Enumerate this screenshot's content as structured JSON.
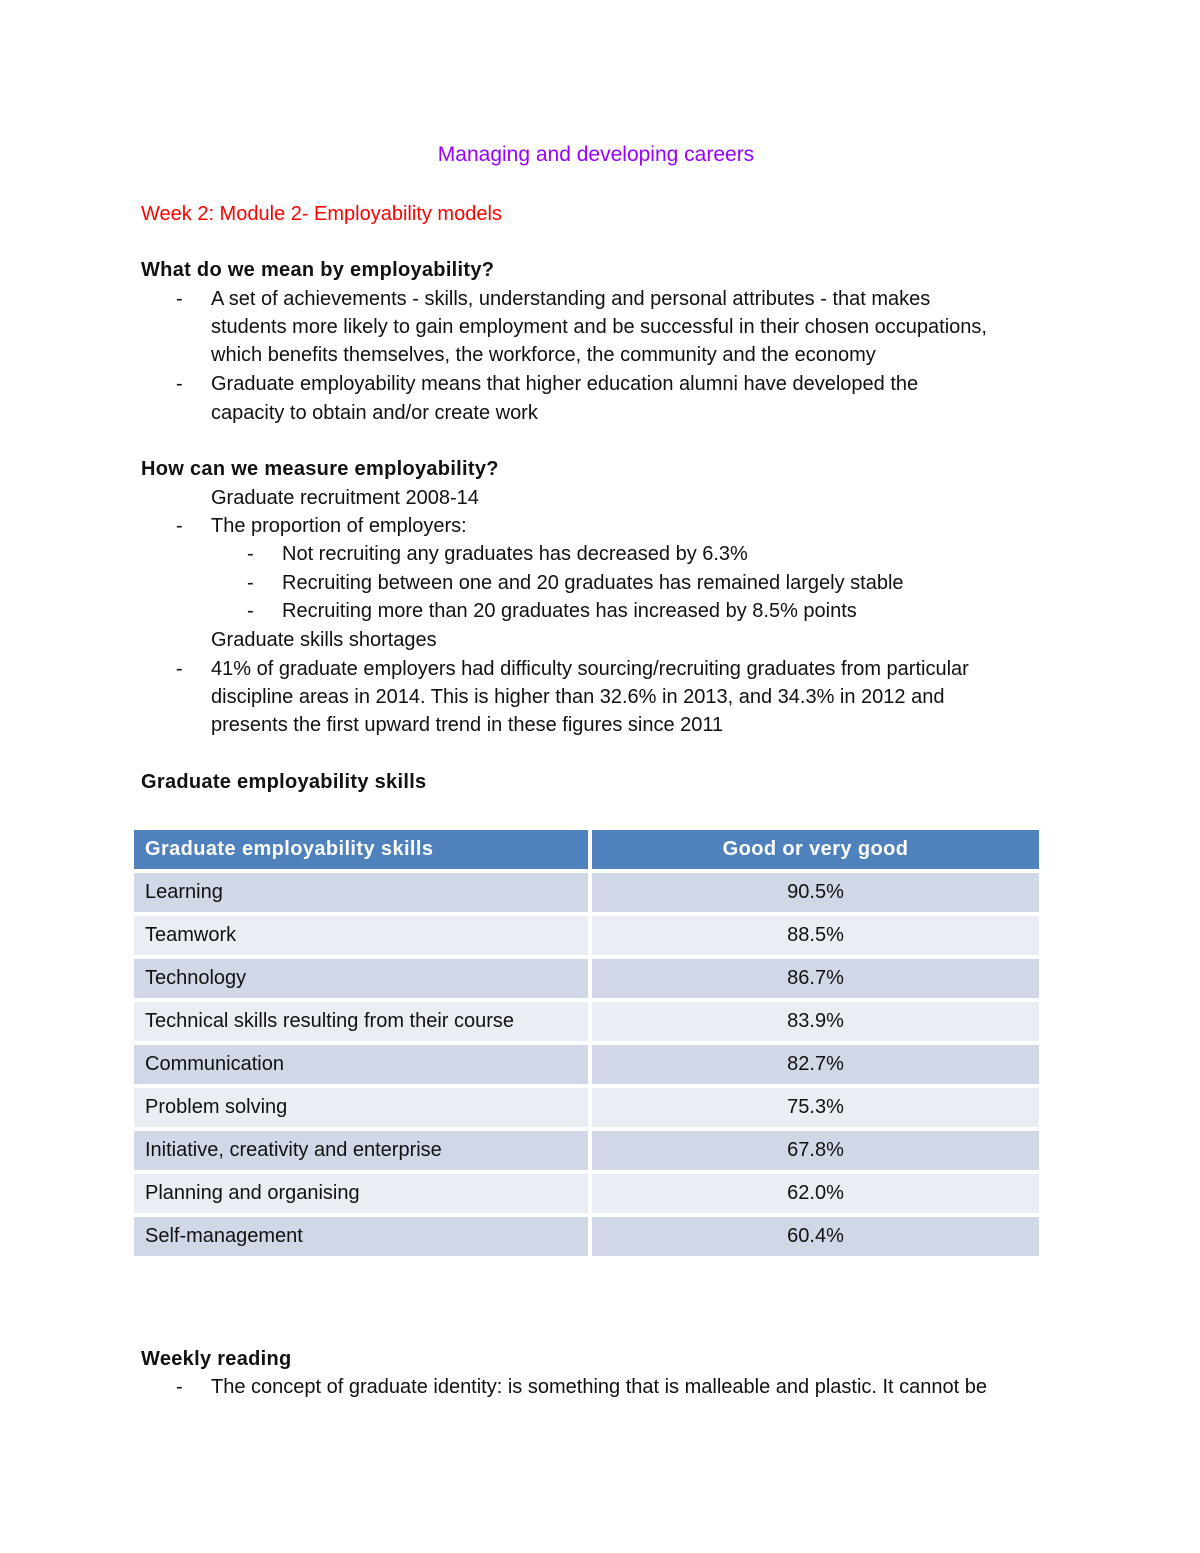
{
  "title": "Managing and developing careers",
  "subtitle": "Week 2: Module 2- Employability models",
  "section1": {
    "heading": "What do we mean by employability?",
    "bullets": [
      [
        "A set of achievements - skills, understanding and personal attributes - that makes",
        "students more likely to gain employment and be successful in their chosen occupations,",
        "which benefits themselves, the workforce, the community and the economy"
      ],
      [
        "Graduate employability means that higher education alumni have developed the",
        "capacity to obtain and/or create work"
      ]
    ]
  },
  "section2": {
    "heading": "How can we measure employability?",
    "sub1": "Graduate recruitment 2008-14",
    "b1": "The proportion of employers:",
    "subbullets": [
      "Not recruiting any graduates has decreased by 6.3%",
      "Recruiting between one and 20 graduates has remained largely stable",
      "Recruiting more than 20 graduates has increased by 8.5% points"
    ],
    "sub2": "Graduate skills shortages",
    "b2": [
      "41% of graduate employers had difficulty sourcing/recruiting graduates from particular",
      "discipline areas in 2014. This is higher than 32.6% in 2013, and 34.3% in 2012 and",
      "presents the first upward trend in these figures since 2011"
    ]
  },
  "section3": {
    "heading": "Graduate employability skills",
    "table": {
      "headers": [
        "Graduate employability skills",
        "Good or very good"
      ],
      "rows": [
        [
          "Learning",
          "90.5%"
        ],
        [
          "Teamwork",
          "88.5%"
        ],
        [
          "Technology",
          "86.7%"
        ],
        [
          "Technical skills resulting from their course",
          "83.9%"
        ],
        [
          "Communication",
          "82.7%"
        ],
        [
          "Problem solving",
          "75.3%"
        ],
        [
          "Initiative, creativity  and enterprise",
          "67.8%"
        ],
        [
          "Planning and organising",
          "62.0%"
        ],
        [
          "Self-management",
          "60.4%"
        ]
      ]
    }
  },
  "section4": {
    "heading": "Weekly reading",
    "bullet": "The concept of graduate identity: is something that is malleable and plastic. It cannot be"
  },
  "dash": "-",
  "colors": {
    "title": "#9900ff",
    "subtitle": "#ff0000",
    "header": "#4f81bd",
    "row_odd": "#d0d8e8",
    "row_even": "#e9edf4"
  }
}
